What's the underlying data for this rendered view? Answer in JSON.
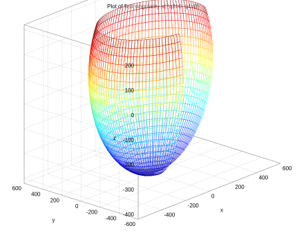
{
  "chart_data": {
    "type": "surface",
    "title": "Plot of first singularity at (q3=0, q4=0)",
    "xlabel": "x",
    "ylabel": "y",
    "zlabel": "z",
    "xlim": [
      -600,
      600
    ],
    "ylim": [
      -600,
      600
    ],
    "zlim": [
      -420,
      220
    ],
    "x_ticks": [
      "-400",
      "-200",
      "0",
      "200",
      "400",
      "600"
    ],
    "y_ticks": [
      "600",
      "400",
      "200",
      "0",
      "-200",
      "-400",
      "-600"
    ],
    "z_ticks": [
      "200",
      "100",
      "0",
      "-100",
      "-200",
      "-300",
      "-400"
    ],
    "grid": true,
    "colormap": "jet",
    "surface": {
      "shape": "hemispherical bowl (cut open)",
      "radius": 420,
      "z_top": 200,
      "z_bottom": -420,
      "missing_sector_deg": [
        -100,
        -20
      ]
    }
  }
}
